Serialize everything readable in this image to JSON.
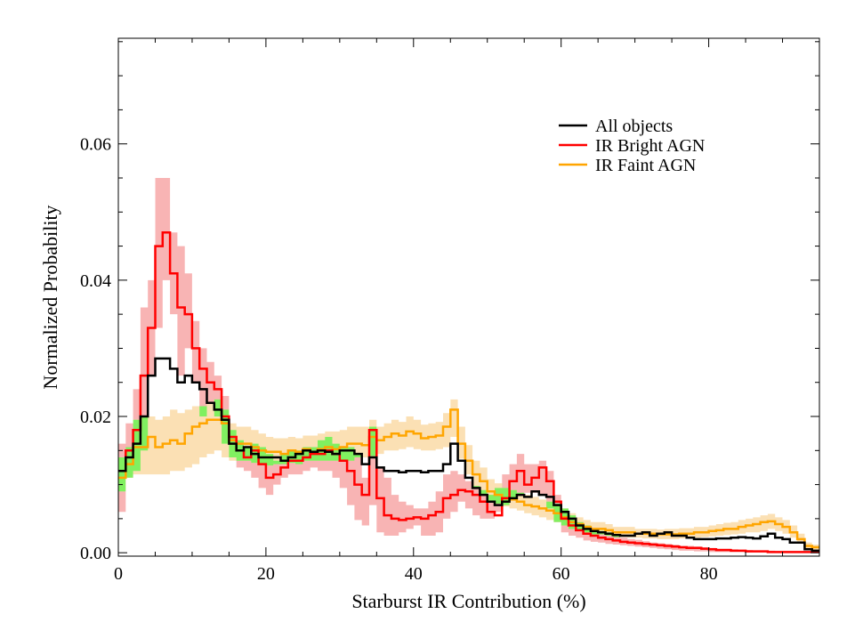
{
  "chart_data": {
    "type": "line",
    "title": "",
    "xlabel": "Starburst IR Contribution (%)",
    "ylabel": "Normalized Probability",
    "xlim": [
      0,
      95
    ],
    "ylim": [
      -0.0005,
      0.0755
    ],
    "x_ticks": [
      0,
      20,
      40,
      60,
      80
    ],
    "x_tick_labels": [
      "0",
      "20",
      "40",
      "60",
      "80"
    ],
    "y_ticks": [
      0.0,
      0.02,
      0.04,
      0.06
    ],
    "y_tick_labels": [
      "0.00",
      "0.02",
      "0.04",
      "0.06"
    ],
    "legend_position": "top-right",
    "x": [
      0,
      1,
      2,
      3,
      4,
      5,
      6,
      7,
      8,
      9,
      10,
      11,
      12,
      13,
      14,
      15,
      16,
      17,
      18,
      19,
      20,
      21,
      22,
      23,
      24,
      25,
      26,
      27,
      28,
      29,
      30,
      31,
      32,
      33,
      34,
      35,
      36,
      37,
      38,
      39,
      40,
      41,
      42,
      43,
      44,
      45,
      46,
      47,
      48,
      49,
      50,
      51,
      52,
      53,
      54,
      55,
      56,
      57,
      58,
      59,
      60,
      61,
      62,
      63,
      64,
      65,
      66,
      67,
      68,
      69,
      70,
      71,
      72,
      73,
      74,
      75,
      76,
      77,
      78,
      79,
      80,
      81,
      82,
      83,
      84,
      85,
      86,
      87,
      88,
      89,
      90,
      91,
      92,
      93,
      94,
      95
    ],
    "series": [
      {
        "name": "All objects",
        "color": "#000000",
        "style": "step",
        "values": [
          0.012,
          0.014,
          0.016,
          0.02,
          0.026,
          0.0285,
          0.0285,
          0.027,
          0.025,
          0.026,
          0.025,
          0.024,
          0.022,
          0.021,
          0.0195,
          0.016,
          0.015,
          0.0155,
          0.0145,
          0.014,
          0.014,
          0.014,
          0.0135,
          0.014,
          0.0145,
          0.015,
          0.0148,
          0.015,
          0.0148,
          0.0145,
          0.015,
          0.015,
          0.0145,
          0.013,
          0.014,
          0.0125,
          0.012,
          0.012,
          0.0118,
          0.012,
          0.012,
          0.0118,
          0.012,
          0.012,
          0.013,
          0.016,
          0.0135,
          0.011,
          0.0095,
          0.0085,
          0.0075,
          0.007,
          0.0075,
          0.008,
          0.0085,
          0.0082,
          0.009,
          0.0085,
          0.0082,
          0.007,
          0.006,
          0.005,
          0.004,
          0.0035,
          0.0032,
          0.003,
          0.0028,
          0.0026,
          0.0025,
          0.0025,
          0.0028,
          0.003,
          0.0025,
          0.0028,
          0.003,
          0.0025,
          0.0025,
          0.0022,
          0.002,
          0.002,
          0.002,
          0.0021,
          0.0021,
          0.0022,
          0.0023,
          0.0022,
          0.0021,
          0.0024,
          0.0028,
          0.0022,
          0.002,
          0.0015,
          0.0015,
          0.0005,
          0.0003,
          0.0003
        ]
      },
      {
        "name": "IR Bright AGN",
        "color": "#ff0000",
        "style": "step",
        "band_color": "#f8b4b4",
        "values": [
          0.012,
          0.015,
          0.018,
          0.026,
          0.033,
          0.045,
          0.047,
          0.041,
          0.036,
          0.035,
          0.03,
          0.027,
          0.025,
          0.024,
          0.02,
          0.017,
          0.015,
          0.014,
          0.015,
          0.013,
          0.011,
          0.0115,
          0.0125,
          0.0135,
          0.0135,
          0.014,
          0.0145,
          0.0145,
          0.015,
          0.0145,
          0.0135,
          0.012,
          0.01,
          0.0085,
          0.018,
          0.008,
          0.0055,
          0.005,
          0.0048,
          0.005,
          0.0052,
          0.005,
          0.0055,
          0.006,
          0.008,
          0.0085,
          0.0092,
          0.009,
          0.0085,
          0.0075,
          0.006,
          0.0055,
          0.008,
          0.0105,
          0.012,
          0.01,
          0.011,
          0.0125,
          0.0105,
          0.0075,
          0.005,
          0.004,
          0.0033,
          0.0028,
          0.0025,
          0.0022,
          0.002,
          0.0018,
          0.0016,
          0.0015,
          0.0014,
          0.0013,
          0.0012,
          0.0011,
          0.001,
          0.0009,
          0.0008,
          0.0007,
          0.0007,
          0.0006,
          0.0005,
          0.0004,
          0.0004,
          0.0003,
          0.0003,
          0.0002,
          0.0002,
          0.0002,
          0.0001,
          0.0001,
          0.0001,
          0.0001,
          0.0001,
          0.0001,
          0.0001,
          0.0001
        ],
        "band_lower": [
          0.006,
          0.011,
          0.012,
          0.015,
          0.026,
          0.033,
          0.04,
          0.035,
          0.026,
          0.03,
          0.025,
          0.02,
          0.022,
          0.02,
          0.016,
          0.014,
          0.0125,
          0.012,
          0.011,
          0.0095,
          0.0085,
          0.01,
          0.011,
          0.0115,
          0.0115,
          0.012,
          0.0125,
          0.012,
          0.012,
          0.011,
          0.0095,
          0.007,
          0.0048,
          0.004,
          0.007,
          0.003,
          0.0025,
          0.0025,
          0.003,
          0.0035,
          0.004,
          0.0025,
          0.0025,
          0.003,
          0.005,
          0.006,
          0.0075,
          0.0065,
          0.0055,
          0.005,
          0.005,
          0.006,
          0.007,
          0.008,
          0.0085,
          0.0088,
          0.0088,
          0.0085,
          0.0065,
          0.0045,
          0.003,
          0.0025,
          0.0022,
          0.0018,
          0.0016,
          0.0015,
          0.0013,
          0.0012,
          0.0011,
          0.001,
          0.0009,
          0.0008,
          0.0007,
          0.0006,
          0.0005,
          0.0004,
          0.0003,
          0.0003,
          0.0002,
          0.0002,
          0.0001,
          0.0001,
          0.0001,
          0.0001,
          0.0001,
          0.0001,
          0.0001,
          0.0001,
          0.0001,
          0.0001,
          0.0001,
          0.0001,
          0.0001,
          0.0001,
          0.0001,
          0.0001
        ],
        "band_upper": [
          0.016,
          0.019,
          0.024,
          0.036,
          0.04,
          0.055,
          0.055,
          0.047,
          0.045,
          0.041,
          0.034,
          0.03,
          0.028,
          0.026,
          0.023,
          0.018,
          0.0165,
          0.0155,
          0.016,
          0.0155,
          0.0145,
          0.0135,
          0.0145,
          0.015,
          0.015,
          0.0155,
          0.0155,
          0.0165,
          0.017,
          0.016,
          0.0155,
          0.0155,
          0.0145,
          0.011,
          0.0185,
          0.0125,
          0.011,
          0.0085,
          0.0075,
          0.007,
          0.0065,
          0.0065,
          0.0075,
          0.009,
          0.0115,
          0.012,
          0.0115,
          0.0105,
          0.0098,
          0.0092,
          0.0085,
          0.0095,
          0.0115,
          0.013,
          0.0145,
          0.013,
          0.013,
          0.0135,
          0.012,
          0.0085,
          0.0065,
          0.0055,
          0.0045,
          0.004,
          0.0035,
          0.0032,
          0.003,
          0.0026,
          0.0022,
          0.002,
          0.0019,
          0.0017,
          0.0015,
          0.0014,
          0.0013,
          0.0012,
          0.001,
          0.001,
          0.0009,
          0.0008,
          0.0007,
          0.0006,
          0.0006,
          0.0005,
          0.0004,
          0.0004,
          0.0003,
          0.0003,
          0.0003,
          0.0002,
          0.0002,
          0.0002,
          0.0002,
          0.0002,
          0.0002,
          0.0002
        ]
      },
      {
        "name": "IR Faint AGN",
        "color": "#ffa500",
        "style": "step",
        "band_color": "#fbe0b4",
        "values": [
          0.011,
          0.013,
          0.0155,
          0.0155,
          0.017,
          0.0155,
          0.016,
          0.0165,
          0.016,
          0.0175,
          0.0185,
          0.019,
          0.0195,
          0.0195,
          0.019,
          0.0165,
          0.016,
          0.016,
          0.0155,
          0.015,
          0.0148,
          0.0148,
          0.0145,
          0.015,
          0.0148,
          0.0152,
          0.0148,
          0.0152,
          0.0155,
          0.0152,
          0.0155,
          0.016,
          0.016,
          0.0158,
          0.017,
          0.0165,
          0.017,
          0.0175,
          0.0172,
          0.0178,
          0.0175,
          0.0168,
          0.017,
          0.0172,
          0.0185,
          0.021,
          0.016,
          0.0135,
          0.0115,
          0.0105,
          0.009,
          0.0085,
          0.008,
          0.0078,
          0.0075,
          0.007,
          0.0068,
          0.0065,
          0.0062,
          0.0058,
          0.0052,
          0.0045,
          0.0042,
          0.0038,
          0.0035,
          0.0035,
          0.0033,
          0.003,
          0.003,
          0.003,
          0.0028,
          0.0028,
          0.0028,
          0.0027,
          0.0027,
          0.0027,
          0.0028,
          0.0028,
          0.003,
          0.003,
          0.0032,
          0.0033,
          0.0035,
          0.0035,
          0.0038,
          0.004,
          0.0042,
          0.0045,
          0.0046,
          0.0042,
          0.0038,
          0.003,
          0.002,
          0.001,
          0.0008,
          0.0005
        ],
        "band_lower": [
          0.009,
          0.011,
          0.0115,
          0.0115,
          0.0115,
          0.0115,
          0.0115,
          0.012,
          0.012,
          0.0125,
          0.013,
          0.014,
          0.0145,
          0.015,
          0.014,
          0.0135,
          0.0135,
          0.0135,
          0.0132,
          0.013,
          0.0128,
          0.013,
          0.013,
          0.0132,
          0.013,
          0.0135,
          0.0135,
          0.0135,
          0.0135,
          0.0135,
          0.0135,
          0.0135,
          0.014,
          0.014,
          0.0142,
          0.0145,
          0.015,
          0.015,
          0.0152,
          0.0155,
          0.0152,
          0.015,
          0.015,
          0.0152,
          0.0155,
          0.017,
          0.0138,
          0.0115,
          0.0095,
          0.0085,
          0.0075,
          0.0072,
          0.0068,
          0.0065,
          0.0062,
          0.0058,
          0.0055,
          0.0052,
          0.0048,
          0.0045,
          0.004,
          0.0035,
          0.0032,
          0.003,
          0.0027,
          0.0027,
          0.0025,
          0.0023,
          0.0023,
          0.0022,
          0.0022,
          0.0021,
          0.0021,
          0.002,
          0.002,
          0.002,
          0.0021,
          0.0021,
          0.0022,
          0.0023,
          0.0024,
          0.0025,
          0.0026,
          0.0027,
          0.0028,
          0.003,
          0.003,
          0.0032,
          0.0035,
          0.0032,
          0.0028,
          0.0022,
          0.0015,
          0.0006,
          0.0004,
          0.0002
        ],
        "band_upper": [
          0.014,
          0.0155,
          0.0195,
          0.02,
          0.02,
          0.0195,
          0.02,
          0.021,
          0.0205,
          0.021,
          0.0215,
          0.0215,
          0.022,
          0.0225,
          0.021,
          0.019,
          0.0185,
          0.0185,
          0.018,
          0.0175,
          0.017,
          0.0168,
          0.0168,
          0.017,
          0.0168,
          0.0172,
          0.0172,
          0.0175,
          0.0178,
          0.0178,
          0.018,
          0.0185,
          0.0185,
          0.0185,
          0.0195,
          0.0185,
          0.019,
          0.0195,
          0.0192,
          0.02,
          0.0195,
          0.0188,
          0.019,
          0.0192,
          0.0205,
          0.0225,
          0.0185,
          0.0158,
          0.0135,
          0.0125,
          0.0108,
          0.0102,
          0.0095,
          0.0092,
          0.0088,
          0.0085,
          0.0082,
          0.0078,
          0.0075,
          0.0072,
          0.0065,
          0.0058,
          0.0052,
          0.0048,
          0.0045,
          0.0045,
          0.0042,
          0.0038,
          0.0038,
          0.0038,
          0.0035,
          0.0035,
          0.0035,
          0.0034,
          0.0035,
          0.0035,
          0.0036,
          0.0036,
          0.0038,
          0.0038,
          0.004,
          0.0042,
          0.0044,
          0.0045,
          0.0048,
          0.005,
          0.0052,
          0.0055,
          0.0057,
          0.0052,
          0.0048,
          0.004,
          0.0028,
          0.0015,
          0.0012,
          0.0008
        ]
      }
    ],
    "overlap_color": "#80f060"
  }
}
